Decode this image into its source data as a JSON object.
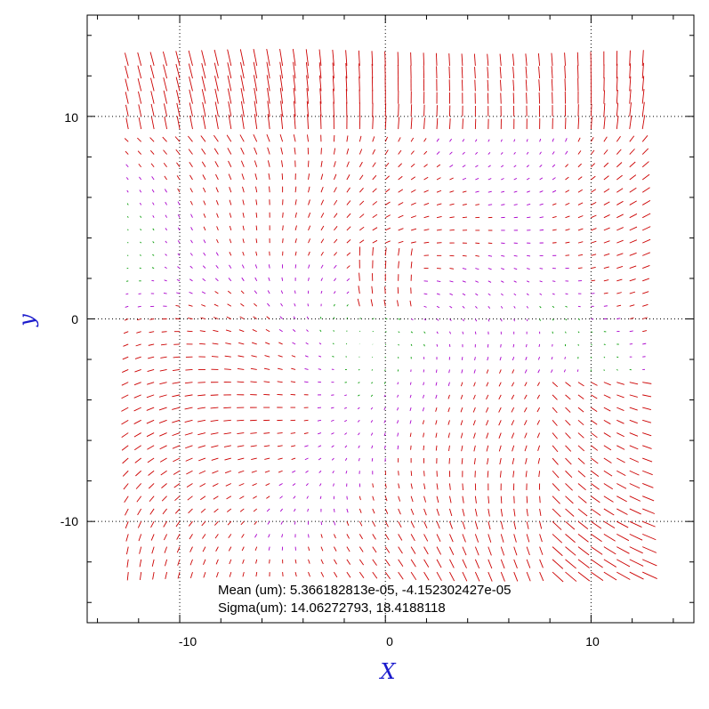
{
  "chart_data": {
    "type": "quiver",
    "xlabel": "X",
    "ylabel": "y",
    "xlim": [
      -14.5,
      15
    ],
    "ylim": [
      -15,
      15
    ],
    "x_ticks": [
      -10,
      0,
      10
    ],
    "y_ticks": [
      -10,
      0,
      10
    ],
    "x_tick_labels": [
      "-10",
      "0",
      "10"
    ],
    "y_tick_labels": [
      "-10",
      "0",
      "10"
    ],
    "grid": true,
    "grid_lines_x": [
      -10,
      0,
      10
    ],
    "grid_lines_y": [
      -10,
      0,
      10
    ],
    "field_grid": {
      "x_range": [
        -12.5,
        12.5
      ],
      "y_range": [
        -12.5,
        12.5
      ],
      "x_count": 41,
      "y_count": 41
    },
    "annotations": {
      "mean_label": "Mean (um): 5.366182813e-05, -4.152302427e-05",
      "sigma_label": "Sigma(um): 14.06272793, 18.4188118"
    },
    "colors": {
      "large_vectors": "#cc0000",
      "medium_vectors": "#aa00cc",
      "small_vectors": "#009900",
      "axis_title": "#1a1acc",
      "grid": "#000000"
    }
  }
}
